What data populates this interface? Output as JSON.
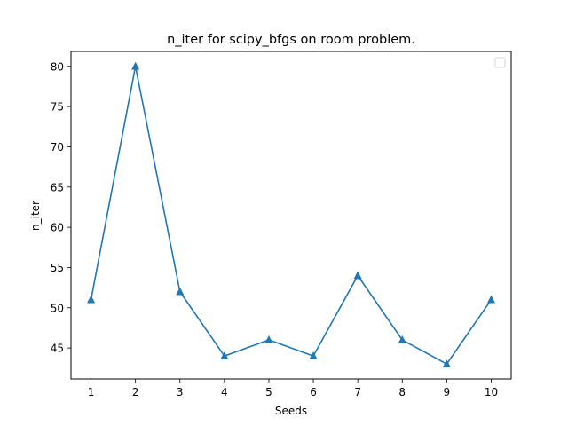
{
  "chart_data": {
    "type": "line",
    "title": "n_iter for scipy_bfgs on room problem.",
    "xlabel": "Seeds",
    "ylabel": "n_iter",
    "x": [
      1,
      2,
      3,
      4,
      5,
      6,
      7,
      8,
      9,
      10
    ],
    "x_ticks": [
      "1",
      "2",
      "3",
      "4",
      "5",
      "6",
      "7",
      "8",
      "9",
      "10"
    ],
    "xlim": [
      0.55,
      10.45
    ],
    "y_ticks": [
      "45",
      "50",
      "55",
      "60",
      "65",
      "70",
      "75",
      "80"
    ],
    "y_tick_values": [
      45,
      50,
      55,
      60,
      65,
      70,
      75,
      80
    ],
    "ylim": [
      41.15,
      81.85
    ],
    "series": [
      {
        "values": [
          51,
          80,
          52,
          44,
          46,
          44,
          54,
          46,
          43,
          51
        ],
        "color": "#1f77b4",
        "marker": "triangle-up"
      }
    ],
    "grid": false,
    "legend": {
      "placement": "upper-right",
      "entries": []
    }
  }
}
